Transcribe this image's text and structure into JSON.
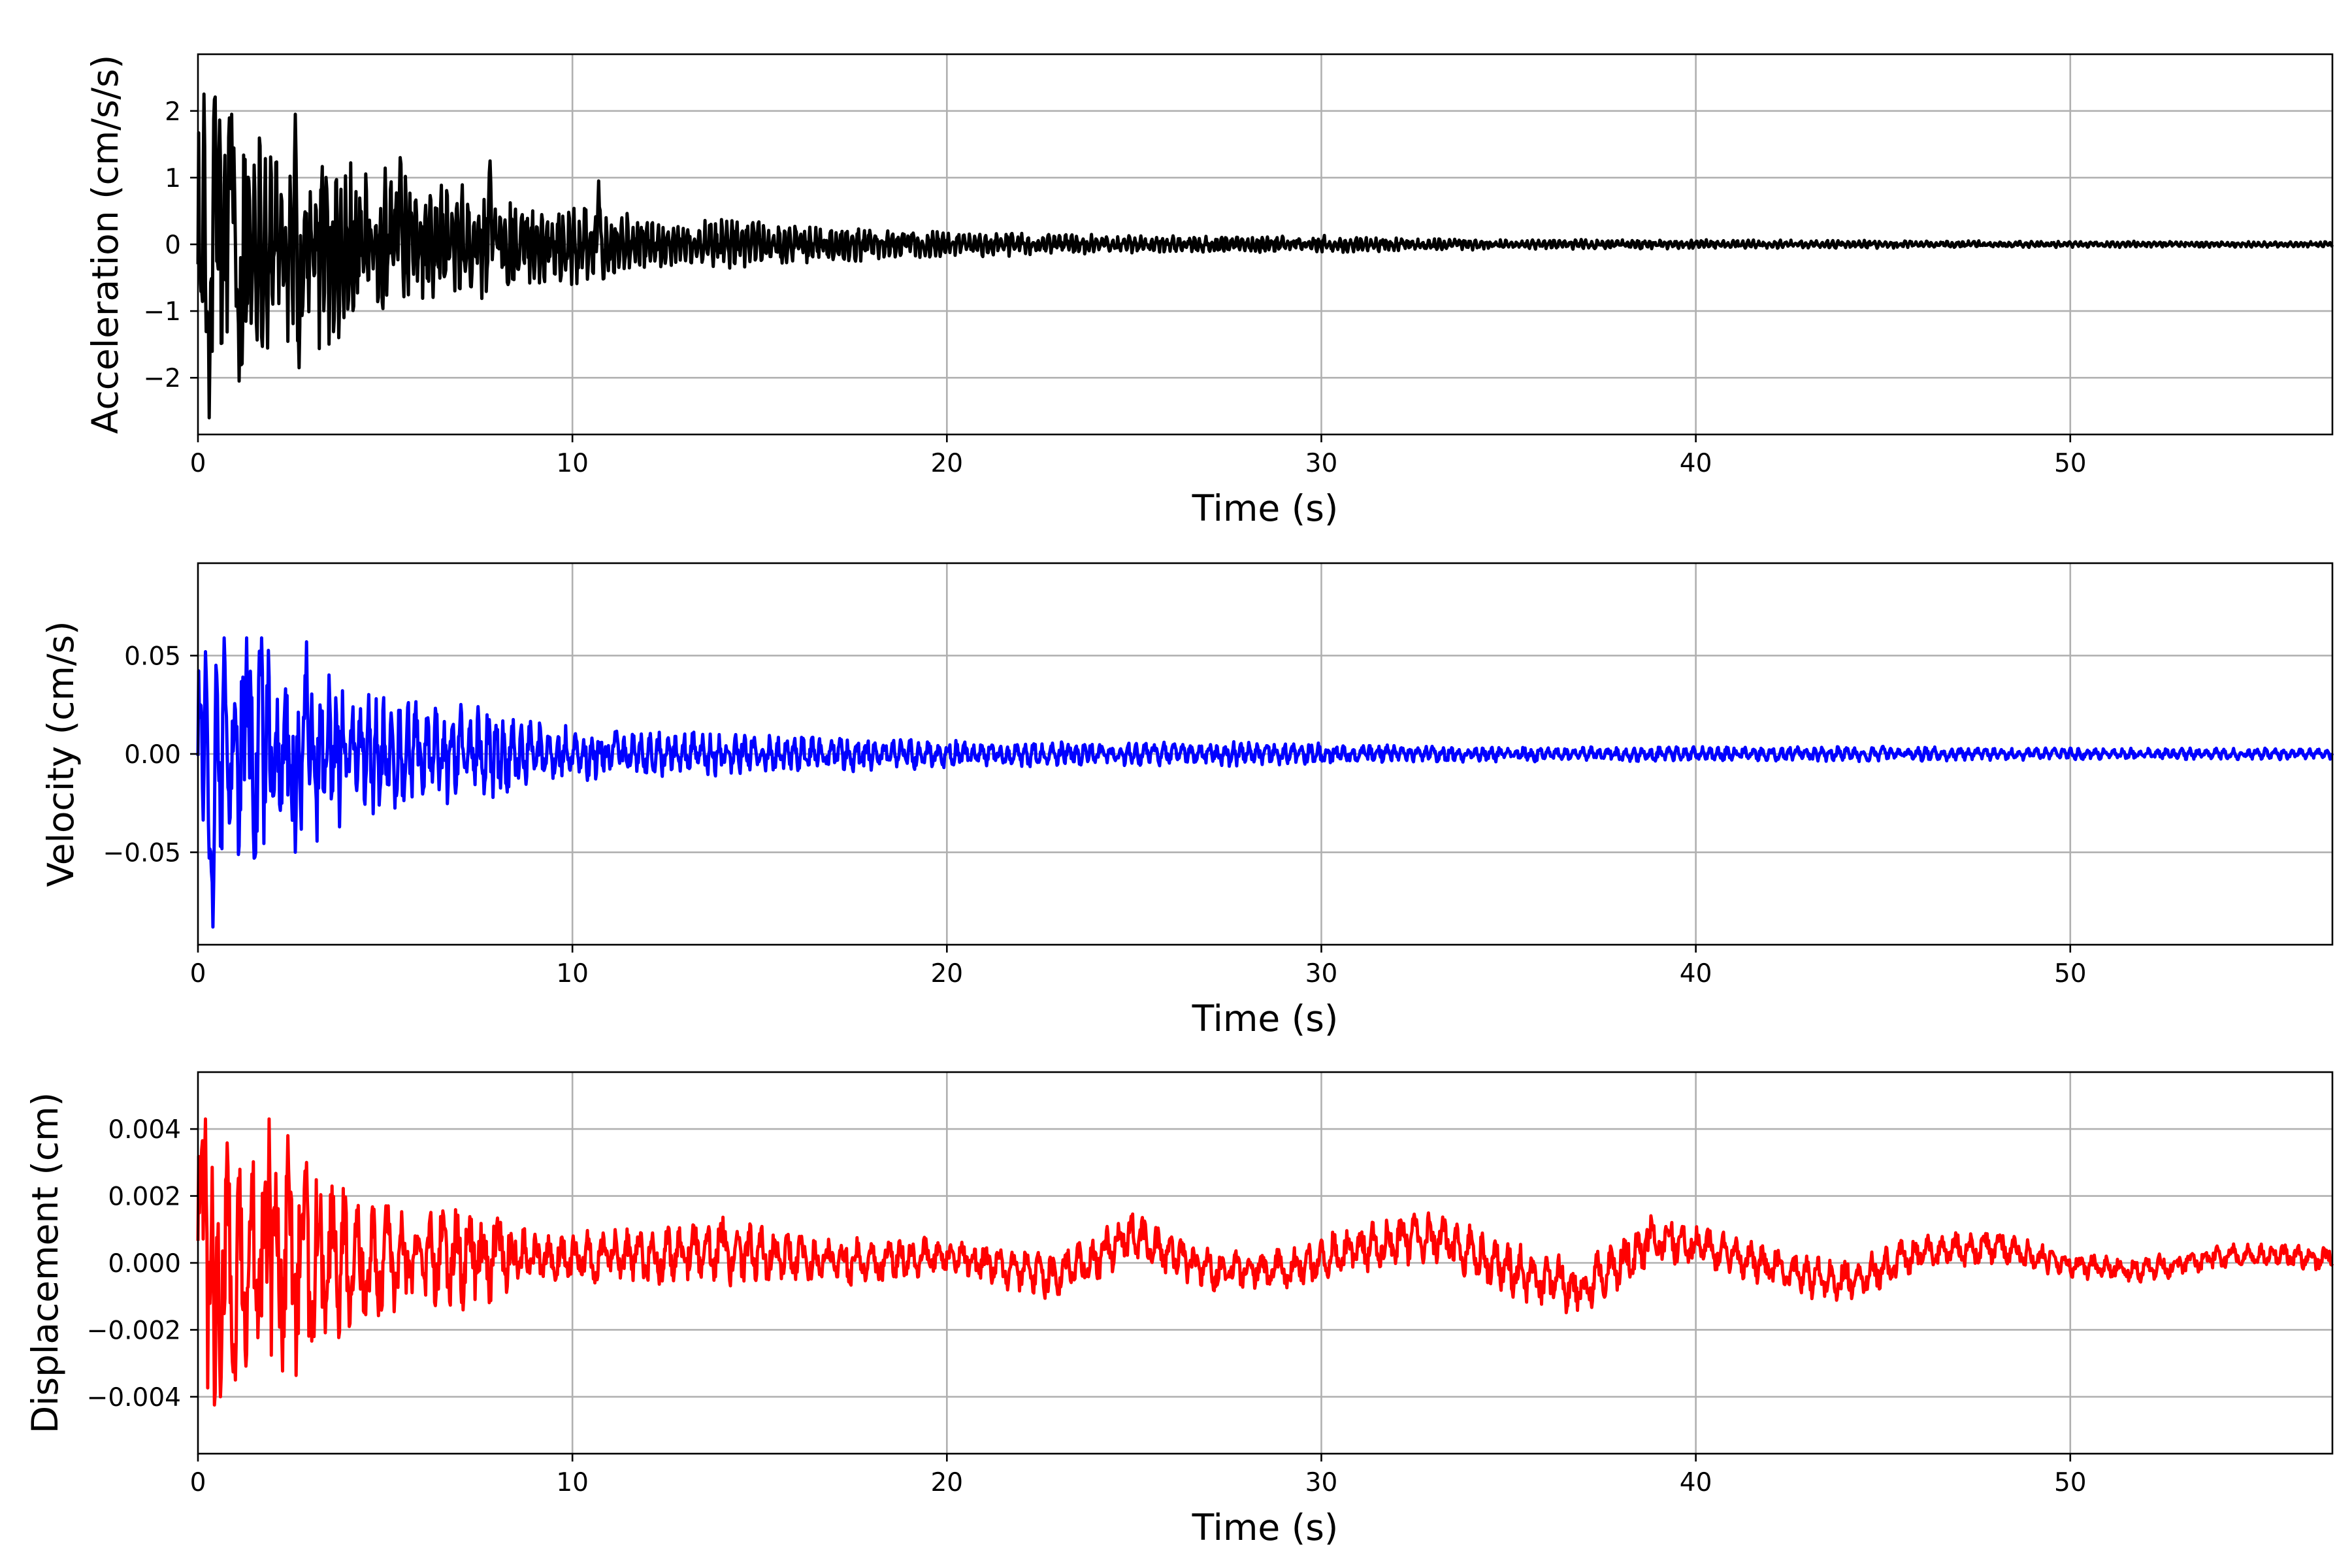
{
  "chart_data": [
    {
      "type": "line",
      "xlabel": "Time (s)",
      "ylabel": "Acceleration (cm/s/s)",
      "xlim": [
        0,
        57
      ],
      "ylim": [
        -2.85,
        2.85
      ],
      "xticks": [
        0,
        10,
        20,
        30,
        40,
        50
      ],
      "yticks": [
        -2,
        -1,
        0,
        1,
        2
      ],
      "ytick_labels": [
        "−2",
        "−1",
        "0",
        "1",
        "2"
      ],
      "grid": true,
      "series": [
        {
          "color": "#000000",
          "envelope": [
            [
              0,
              2.5
            ],
            [
              1,
              2.0
            ],
            [
              2,
              1.7
            ],
            [
              3,
              1.8
            ],
            [
              4,
              1.3
            ],
            [
              5,
              1.2
            ],
            [
              6,
              1.0
            ],
            [
              7,
              0.9
            ],
            [
              8,
              0.8
            ],
            [
              9,
              0.6
            ],
            [
              10,
              0.65
            ],
            [
              11,
              0.55
            ],
            [
              12,
              0.4
            ],
            [
              13,
              0.35
            ],
            [
              14,
              0.4
            ],
            [
              15,
              0.35
            ],
            [
              16,
              0.33
            ],
            [
              17,
              0.3
            ],
            [
              18,
              0.25
            ],
            [
              20,
              0.2
            ],
            [
              22,
              0.18
            ],
            [
              24,
              0.15
            ],
            [
              26,
              0.13
            ],
            [
              28,
              0.12
            ],
            [
              30,
              0.14
            ],
            [
              32,
              0.1
            ],
            [
              35,
              0.08
            ],
            [
              40,
              0.07
            ],
            [
              45,
              0.06
            ],
            [
              50,
              0.05
            ],
            [
              57,
              0.04
            ]
          ],
          "peaks": [
            [
              0.3,
              -2.6
            ],
            [
              0.45,
              2.5
            ],
            [
              0.9,
              1.95
            ],
            [
              1.1,
              -2.05
            ],
            [
              2.6,
              1.95
            ],
            [
              2.7,
              -1.85
            ],
            [
              5.4,
              1.3
            ],
            [
              7.8,
              1.25
            ],
            [
              10.7,
              0.95
            ]
          ]
        }
      ]
    },
    {
      "type": "line",
      "xlabel": "Time (s)",
      "ylabel": "Velocity (cm/s)",
      "xlim": [
        0,
        57
      ],
      "ylim": [
        -0.097,
        0.097
      ],
      "xticks": [
        0,
        10,
        20,
        30,
        40,
        50
      ],
      "yticks": [
        -0.05,
        0.0,
        0.05
      ],
      "ytick_labels": [
        "−0.05",
        "0.00",
        "0.05"
      ],
      "grid": true,
      "series": [
        {
          "color": "#0000ff",
          "envelope": [
            [
              0,
              0.06
            ],
            [
              1,
              0.058
            ],
            [
              2,
              0.055
            ],
            [
              3,
              0.05
            ],
            [
              4,
              0.035
            ],
            [
              5,
              0.033
            ],
            [
              6,
              0.028
            ],
            [
              7,
              0.026
            ],
            [
              8,
              0.024
            ],
            [
              9,
              0.017
            ],
            [
              10,
              0.015
            ],
            [
              11,
              0.013
            ],
            [
              13,
              0.012
            ],
            [
              15,
              0.011
            ],
            [
              17,
              0.01
            ],
            [
              19,
              0.008
            ],
            [
              21,
              0.007
            ],
            [
              25,
              0.006
            ],
            [
              29,
              0.007
            ],
            [
              31,
              0.005
            ],
            [
              35,
              0.004
            ],
            [
              40,
              0.004
            ],
            [
              45,
              0.004
            ],
            [
              50,
              0.003
            ],
            [
              57,
              0.003
            ]
          ],
          "peaks": [
            [
              0.2,
              0.052
            ],
            [
              0.3,
              -0.053
            ],
            [
              0.4,
              -0.088
            ],
            [
              0.7,
              0.059
            ],
            [
              1.3,
              0.059
            ],
            [
              1.5,
              -0.053
            ],
            [
              1.7,
              0.059
            ],
            [
              2.6,
              -0.05
            ],
            [
              2.9,
              0.057
            ]
          ]
        }
      ]
    },
    {
      "type": "line",
      "xlabel": "Time (s)",
      "ylabel": "Displacement (cm)",
      "xlim": [
        0,
        57
      ],
      "ylim": [
        -0.0057,
        0.0057
      ],
      "xticks": [
        0,
        10,
        20,
        30,
        40,
        50
      ],
      "yticks": [
        -0.004,
        -0.002,
        0.0,
        0.002,
        0.004
      ],
      "ytick_labels": [
        "−0.004",
        "−0.002",
        "0.000",
        "0.002",
        "0.004"
      ],
      "grid": true,
      "series": [
        {
          "color": "#ff0000",
          "envelope": [
            [
              0,
              0.0043
            ],
            [
              1,
              0.0035
            ],
            [
              2,
              0.0043
            ],
            [
              3,
              0.003
            ],
            [
              4,
              0.0022
            ],
            [
              5,
              0.0018
            ],
            [
              6,
              0.0016
            ],
            [
              7,
              0.0016
            ],
            [
              8,
              0.0014
            ],
            [
              9,
              0.0008
            ],
            [
              10,
              0.0008
            ],
            [
              12,
              0.0009
            ],
            [
              14,
              0.0011
            ],
            [
              16,
              0.0008
            ],
            [
              18,
              0.0007
            ],
            [
              20,
              0.0006
            ],
            [
              23,
              0.0008
            ],
            [
              25,
              0.0008
            ],
            [
              28,
              0.0006
            ],
            [
              31,
              0.0008
            ],
            [
              33,
              0.0008
            ],
            [
              37,
              0.0009
            ],
            [
              39,
              0.0008
            ],
            [
              42,
              0.0006
            ],
            [
              44,
              0.0007
            ],
            [
              47,
              0.0006
            ],
            [
              50,
              0.0004
            ],
            [
              53,
              0.0004
            ],
            [
              57,
              0.0004
            ]
          ],
          "trend": [
            [
              0,
              0
            ],
            [
              12,
              0.0002
            ],
            [
              14,
              0.0004
            ],
            [
              17,
              0
            ],
            [
              20,
              0.0002
            ],
            [
              23,
              -0.0004
            ],
            [
              25,
              0.0008
            ],
            [
              27,
              -0.0002
            ],
            [
              29,
              -0.0002
            ],
            [
              31,
              0.0004
            ],
            [
              33,
              0.0008
            ],
            [
              35,
              -0.0002
            ],
            [
              37,
              -0.0008
            ],
            [
              39,
              0.0008
            ],
            [
              41,
              0.0002
            ],
            [
              43,
              -0.0004
            ],
            [
              44,
              -0.0006
            ],
            [
              46,
              0.0003
            ],
            [
              48,
              0.0005
            ],
            [
              50,
              -0.0001
            ],
            [
              52,
              -0.0002
            ],
            [
              54,
              0.0002
            ],
            [
              56,
              0.0002
            ],
            [
              57,
              0.0001
            ]
          ],
          "peaks": [
            [
              0.2,
              0.0043
            ],
            [
              0.45,
              -0.0052
            ],
            [
              0.6,
              -0.004
            ],
            [
              1.0,
              -0.0035
            ],
            [
              1.9,
              0.0043
            ],
            [
              2.4,
              0.0038
            ],
            [
              2.9,
              0.003
            ],
            [
              3.1,
              -0.0022
            ]
          ]
        }
      ]
    }
  ]
}
